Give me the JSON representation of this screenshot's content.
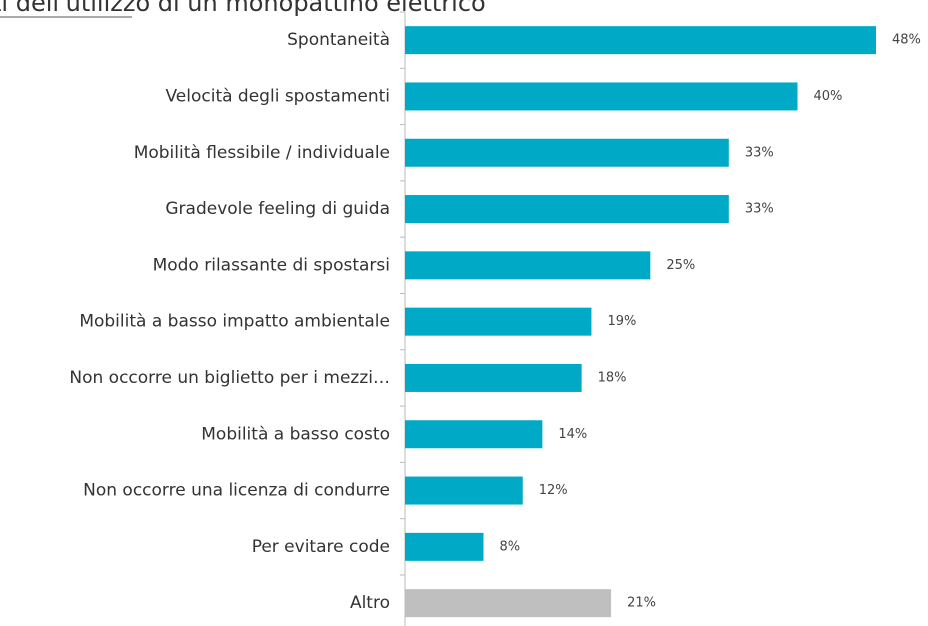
{
  "chart_data": {
    "type": "bar",
    "orientation": "horizontal",
    "title": "ti dell'utilizzo di un monopattino elettrico",
    "categories": [
      "Spontaneità",
      "Velocità degli spostamenti",
      "Mobilità flessibile / individuale",
      "Gradevole feeling di guida",
      "Modo rilassante di spostarsi",
      "Mobilità a basso impatto ambientale",
      "Non occorre un biglietto per i mezzi…",
      "Mobilità a basso costo",
      "Non occorre una licenza di condurre",
      "Per evitare code",
      "Altro"
    ],
    "values": [
      48,
      40,
      33,
      33,
      25,
      19,
      18,
      14,
      12,
      8,
      21
    ],
    "value_labels": [
      "48%",
      "40%",
      "33%",
      "33%",
      "25%",
      "19%",
      "18%",
      "14%",
      "12%",
      "8%",
      "21%"
    ],
    "colors": [
      "#00a9c5",
      "#00a9c5",
      "#00a9c5",
      "#00a9c5",
      "#00a9c5",
      "#00a9c5",
      "#00a9c5",
      "#00a9c5",
      "#00a9c5",
      "#00a9c5",
      "#bfbfbf"
    ]
  }
}
